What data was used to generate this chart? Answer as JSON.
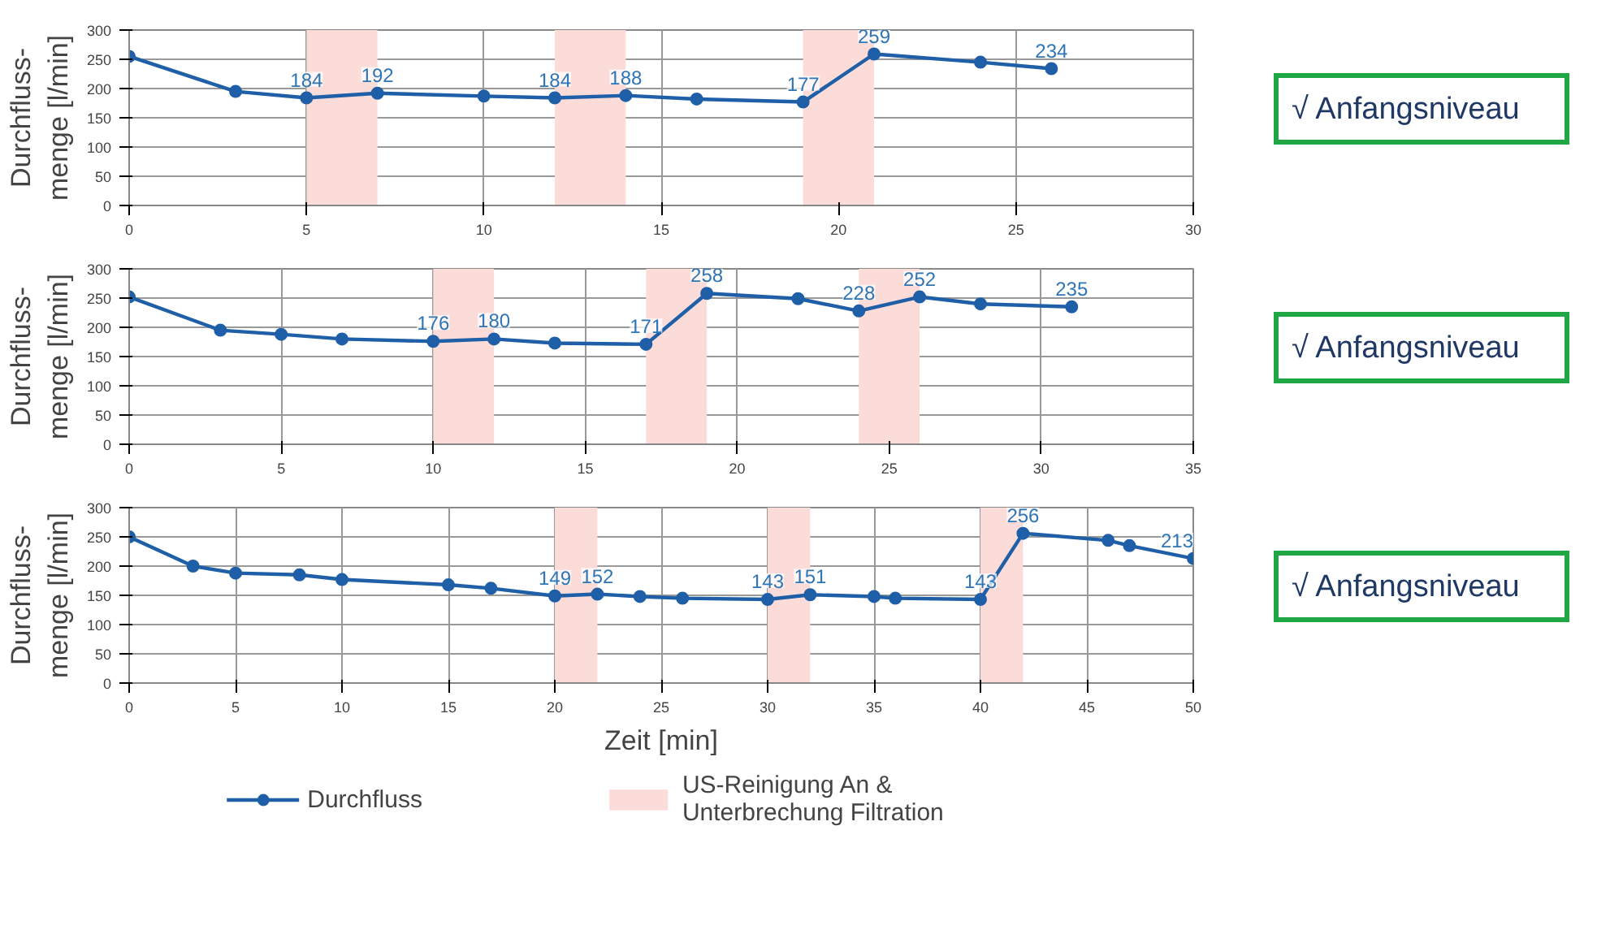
{
  "chart_data": [
    {
      "type": "line",
      "ylabel": "Durchfluss-\nmenge [l/min]",
      "x": [
        0,
        3,
        5,
        7,
        10,
        12,
        14,
        16,
        19,
        21,
        24,
        26
      ],
      "xlim": [
        0,
        30
      ],
      "xticks": [
        0,
        5,
        10,
        15,
        20,
        25,
        30
      ],
      "ylim": [
        0,
        300
      ],
      "yticks": [
        0,
        50,
        100,
        150,
        200,
        250,
        300
      ],
      "grid": true,
      "marker": "circle",
      "tick_labels": "xy",
      "series": [
        {
          "color": "#1f5fa8",
          "values": [
            255,
            195,
            184,
            192,
            187,
            184,
            188,
            182,
            177,
            259,
            245,
            234
          ]
        }
      ],
      "bands": [
        {
          "axis": "x",
          "from": 5,
          "to": 7,
          "color": "#fcdcd9"
        },
        {
          "axis": "x",
          "from": 12,
          "to": 14,
          "color": "#fcdcd9"
        },
        {
          "axis": "x",
          "from": 19,
          "to": 21,
          "color": "#fcdcd9"
        }
      ],
      "annotations": [
        {
          "text": "184",
          "x": 5,
          "y": 184
        },
        {
          "text": "192",
          "x": 7,
          "y": 192
        },
        {
          "text": "184",
          "x": 12,
          "y": 184
        },
        {
          "text": "188",
          "x": 14,
          "y": 188
        },
        {
          "text": "177",
          "x": 19,
          "y": 177
        },
        {
          "text": "259",
          "x": 21,
          "y": 259
        },
        {
          "text": "234",
          "x": 26,
          "y": 234
        },
        "√ Anfangsniveau"
      ]
    },
    {
      "type": "line",
      "ylabel": "Durchfluss-\nmenge [l/min]",
      "x": [
        0,
        3,
        5,
        7,
        10,
        12,
        14,
        17,
        19,
        22,
        24,
        26,
        28,
        31
      ],
      "xlim": [
        0,
        35
      ],
      "xticks": [
        0,
        5,
        10,
        15,
        20,
        25,
        30,
        35
      ],
      "ylim": [
        0,
        300
      ],
      "yticks": [
        0,
        50,
        100,
        150,
        200,
        250,
        300
      ],
      "grid": true,
      "marker": "circle",
      "series": [
        {
          "color": "#1f5fa8",
          "values": [
            252,
            195,
            188,
            180,
            176,
            180,
            173,
            171,
            258,
            249,
            228,
            252,
            240,
            235
          ]
        }
      ],
      "bands": [
        {
          "axis": "x",
          "from": 10,
          "to": 12,
          "color": "#fcdcd9"
        },
        {
          "axis": "x",
          "from": 17,
          "to": 19,
          "color": "#fcdcd9"
        },
        {
          "axis": "x",
          "from": 24,
          "to": 26,
          "color": "#fcdcd9"
        }
      ],
      "annotations": [
        {
          "text": "176",
          "x": 10,
          "y": 176
        },
        {
          "text": "180",
          "x": 12,
          "y": 180
        },
        {
          "text": "171",
          "x": 17,
          "y": 171
        },
        {
          "text": "258",
          "x": 19,
          "y": 258
        },
        {
          "text": "228",
          "x": 24,
          "y": 228
        },
        {
          "text": "252",
          "x": 26,
          "y": 252
        },
        {
          "text": "235",
          "x": 31,
          "y": 235
        },
        "√ Anfangsniveau"
      ]
    },
    {
      "type": "line",
      "ylabel": "Durchfluss-\nmenge [l/min]",
      "xlabel": "Zeit [min]",
      "x": [
        0,
        3,
        5,
        8,
        10,
        15,
        17,
        20,
        22,
        24,
        26,
        30,
        32,
        35,
        36,
        40,
        42,
        46,
        47,
        50
      ],
      "xlim": [
        0,
        50
      ],
      "xticks": [
        0,
        5,
        10,
        15,
        20,
        25,
        30,
        35,
        40,
        45,
        50
      ],
      "ylim": [
        0,
        300
      ],
      "yticks": [
        0,
        50,
        100,
        150,
        200,
        250,
        300
      ],
      "grid": true,
      "marker": "circle",
      "legend": "bottom",
      "series": [
        {
          "name": "Durchfluss",
          "color": "#1f5fa8",
          "values": [
            250,
            200,
            188,
            185,
            177,
            168,
            162,
            149,
            152,
            148,
            145,
            143,
            151,
            148,
            145,
            143,
            256,
            244,
            235,
            213
          ]
        }
      ],
      "bands": [
        {
          "axis": "x",
          "from": 20,
          "to": 22,
          "color": "#fcdcd9",
          "label": "US-Reinigung An &\nUnterbrechung Filtration"
        },
        {
          "axis": "x",
          "from": 30,
          "to": 32,
          "color": "#fcdcd9"
        },
        {
          "axis": "x",
          "from": 40,
          "to": 42,
          "color": "#fcdcd9"
        }
      ],
      "annotations": [
        {
          "text": "149",
          "x": 20,
          "y": 149
        },
        {
          "text": "152",
          "x": 22,
          "y": 152
        },
        {
          "text": "143",
          "x": 30,
          "y": 143
        },
        {
          "text": "151",
          "x": 32,
          "y": 151
        },
        {
          "text": "143",
          "x": 40,
          "y": 143
        },
        {
          "text": "256",
          "x": 42,
          "y": 256
        },
        {
          "text": "213",
          "x": 50,
          "y": 213
        },
        "√ Anfangsniveau"
      ]
    }
  ]
}
